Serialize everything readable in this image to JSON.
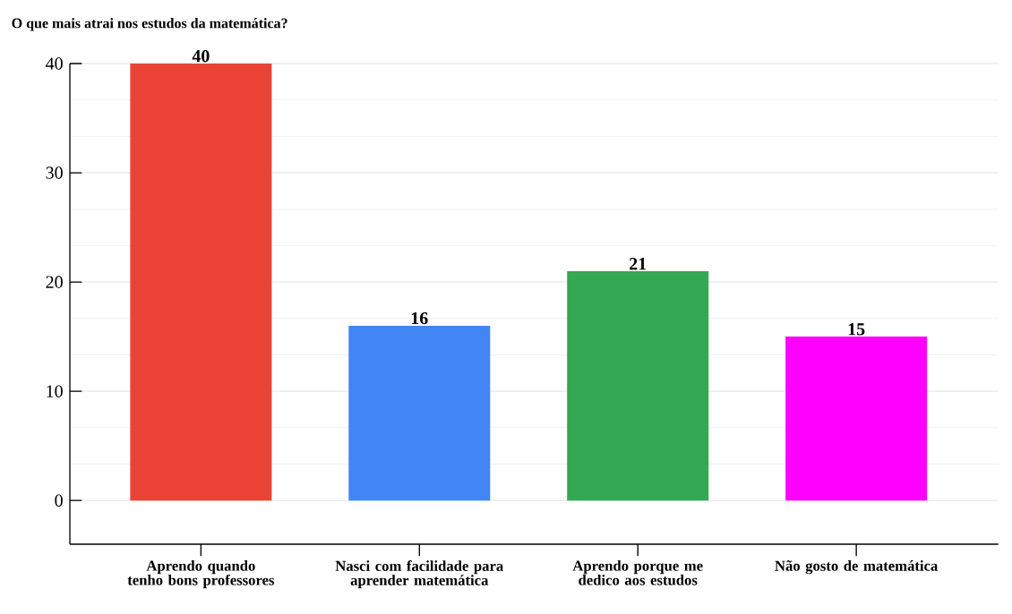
{
  "chart_data": {
    "type": "bar",
    "title": "O que mais atrai nos estudos da matemática?",
    "categories": [
      "Aprendo quando tenho bons professores",
      "Nasci com facilidade para aprender matemática",
      "Aprendo porque me dedico aos estudos",
      "Não gosto de matemática"
    ],
    "values": [
      40,
      16,
      21,
      15
    ],
    "colors": [
      "#ea4335",
      "#4285f4",
      "#34a853",
      "#ff00ff"
    ],
    "ylim": [
      -4,
      40
    ],
    "yticks": [
      0,
      10,
      20,
      30,
      40
    ],
    "grid": "y",
    "data_labels": true
  }
}
